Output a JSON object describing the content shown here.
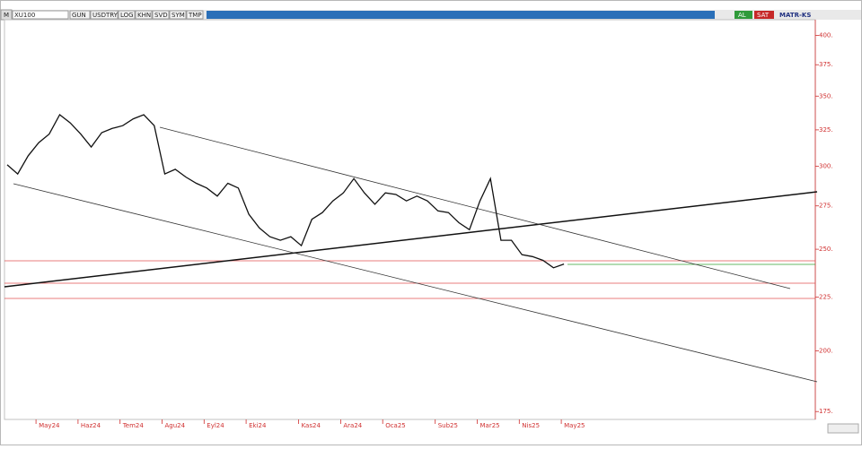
{
  "toolbar": {
    "mode": "M",
    "symbol": "XU100",
    "buttons": [
      "GUN",
      "USDTRY",
      "LOG",
      "KHN",
      "SVD",
      "SYM",
      "TMP"
    ],
    "buy": "AL",
    "sell": "SAT",
    "account": "MATR-KS"
  },
  "chart_data": {
    "type": "line",
    "log_scale": true,
    "color": "#111111",
    "tick_color": "#d03030",
    "categories": [
      null,
      null,
      null,
      "May24",
      null,
      null,
      null,
      "Haz24",
      null,
      null,
      null,
      "Tem24",
      null,
      null,
      null,
      "Agu24",
      null,
      null,
      null,
      "Eyl24",
      null,
      null,
      null,
      "Eki24",
      null,
      null,
      null,
      null,
      "Kas24",
      null,
      null,
      null,
      "Ara24",
      null,
      null,
      null,
      "Oca25",
      null,
      null,
      null,
      null,
      "Sub25",
      null,
      null,
      null,
      "Mar25",
      null,
      null,
      null,
      "Nis25",
      null,
      null,
      null,
      "May25"
    ],
    "values": [
      301,
      295,
      307,
      316,
      322,
      336,
      330,
      322,
      313,
      323,
      326,
      328,
      333,
      336,
      328,
      295,
      298,
      293,
      289,
      286,
      281,
      289,
      286,
      270,
      262,
      257,
      255,
      257,
      252,
      267,
      271,
      278,
      283,
      292,
      283,
      276,
      283,
      282,
      278,
      281,
      278,
      272,
      271,
      265,
      261,
      278,
      292,
      255,
      255,
      247,
      246,
      244,
      240,
      242
    ],
    "ylim": [
      172,
      414
    ],
    "yticks": [
      {
        "value": 400,
        "label": "400."
      },
      {
        "value": 375,
        "label": "375."
      },
      {
        "value": 350,
        "label": "350."
      },
      {
        "value": 325,
        "label": "325."
      },
      {
        "value": 300,
        "label": "300."
      },
      {
        "value": 275,
        "label": "275."
      },
      {
        "value": 250,
        "label": "250."
      },
      {
        "value": 225,
        "label": "225."
      },
      {
        "value": 200,
        "label": "200."
      },
      {
        "value": 175,
        "label": "175."
      }
    ]
  }
}
